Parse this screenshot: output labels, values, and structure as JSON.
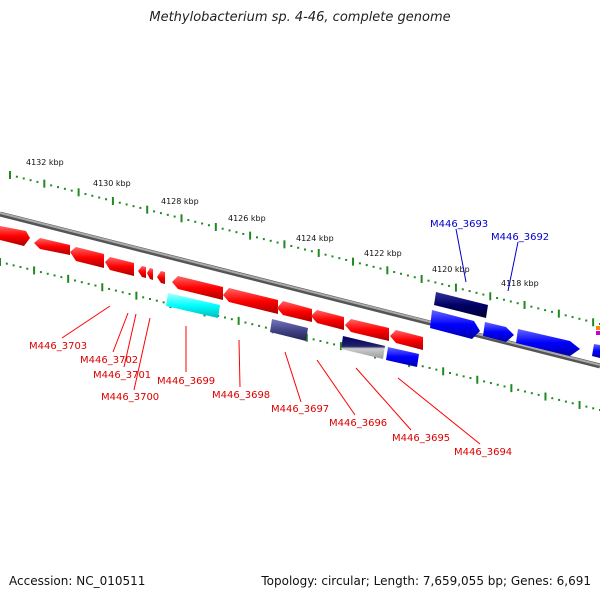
{
  "title": "Methylobacterium sp. 4-46, complete genome",
  "footer": {
    "accession": "Accession: NC_010511",
    "summary": "Topology: circular; Length: 7,659,055 bp; Genes: 6,691"
  },
  "colors": {
    "forward_strand": "#0000ff",
    "reverse_strand": "#ff0000",
    "backbone": "#888888",
    "ticks": "#228822",
    "highlight_cyan": "#00ffff",
    "highlight_navy": "#000066",
    "highlight_slate": "#444488"
  },
  "scale_ticks": [
    "4132 kbp",
    "4130 kbp",
    "4128 kbp",
    "4126 kbp",
    "4124 kbp",
    "4122 kbp",
    "4120 kbp",
    "4118 kbp"
  ],
  "genes_forward": [
    "M446_3693",
    "M446_3692"
  ],
  "genes_reverse": [
    "M446_3703",
    "M446_3702",
    "M446_3701",
    "M446_3700",
    "M446_3699",
    "M446_3698",
    "M446_3697",
    "M446_3696",
    "M446_3695",
    "M446_3694"
  ]
}
